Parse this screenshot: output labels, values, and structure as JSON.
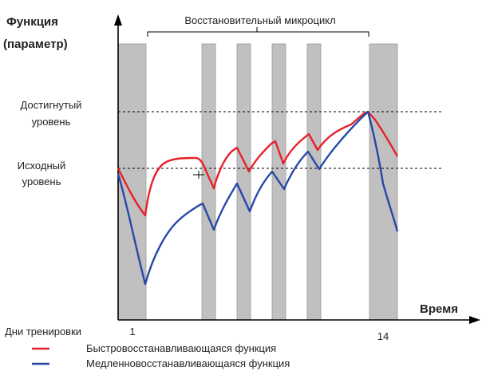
{
  "labels": {
    "y_axis_title_line1": "Функция",
    "y_axis_title_line2": "(параметр)",
    "x_axis_title": "Время",
    "brace_label": "Восстановительный микроцикл",
    "reached_level_line1": "Достигнутый",
    "reached_level_line2": "уровень",
    "initial_level_line1": "Исходный",
    "initial_level_line2": "уровень",
    "training_days_label": "Дни тренировки",
    "day_first": "1",
    "day_last": "14"
  },
  "legend": {
    "fast": "Быстровосстанавливающаяся функция",
    "slow": "Медленновосстанавливающаяся функция"
  },
  "colors": {
    "fast": "#e8202a",
    "slow": "#2848a8",
    "training_bar": "#c0c0c0",
    "axis": "#000000",
    "text": "#222222"
  }
}
